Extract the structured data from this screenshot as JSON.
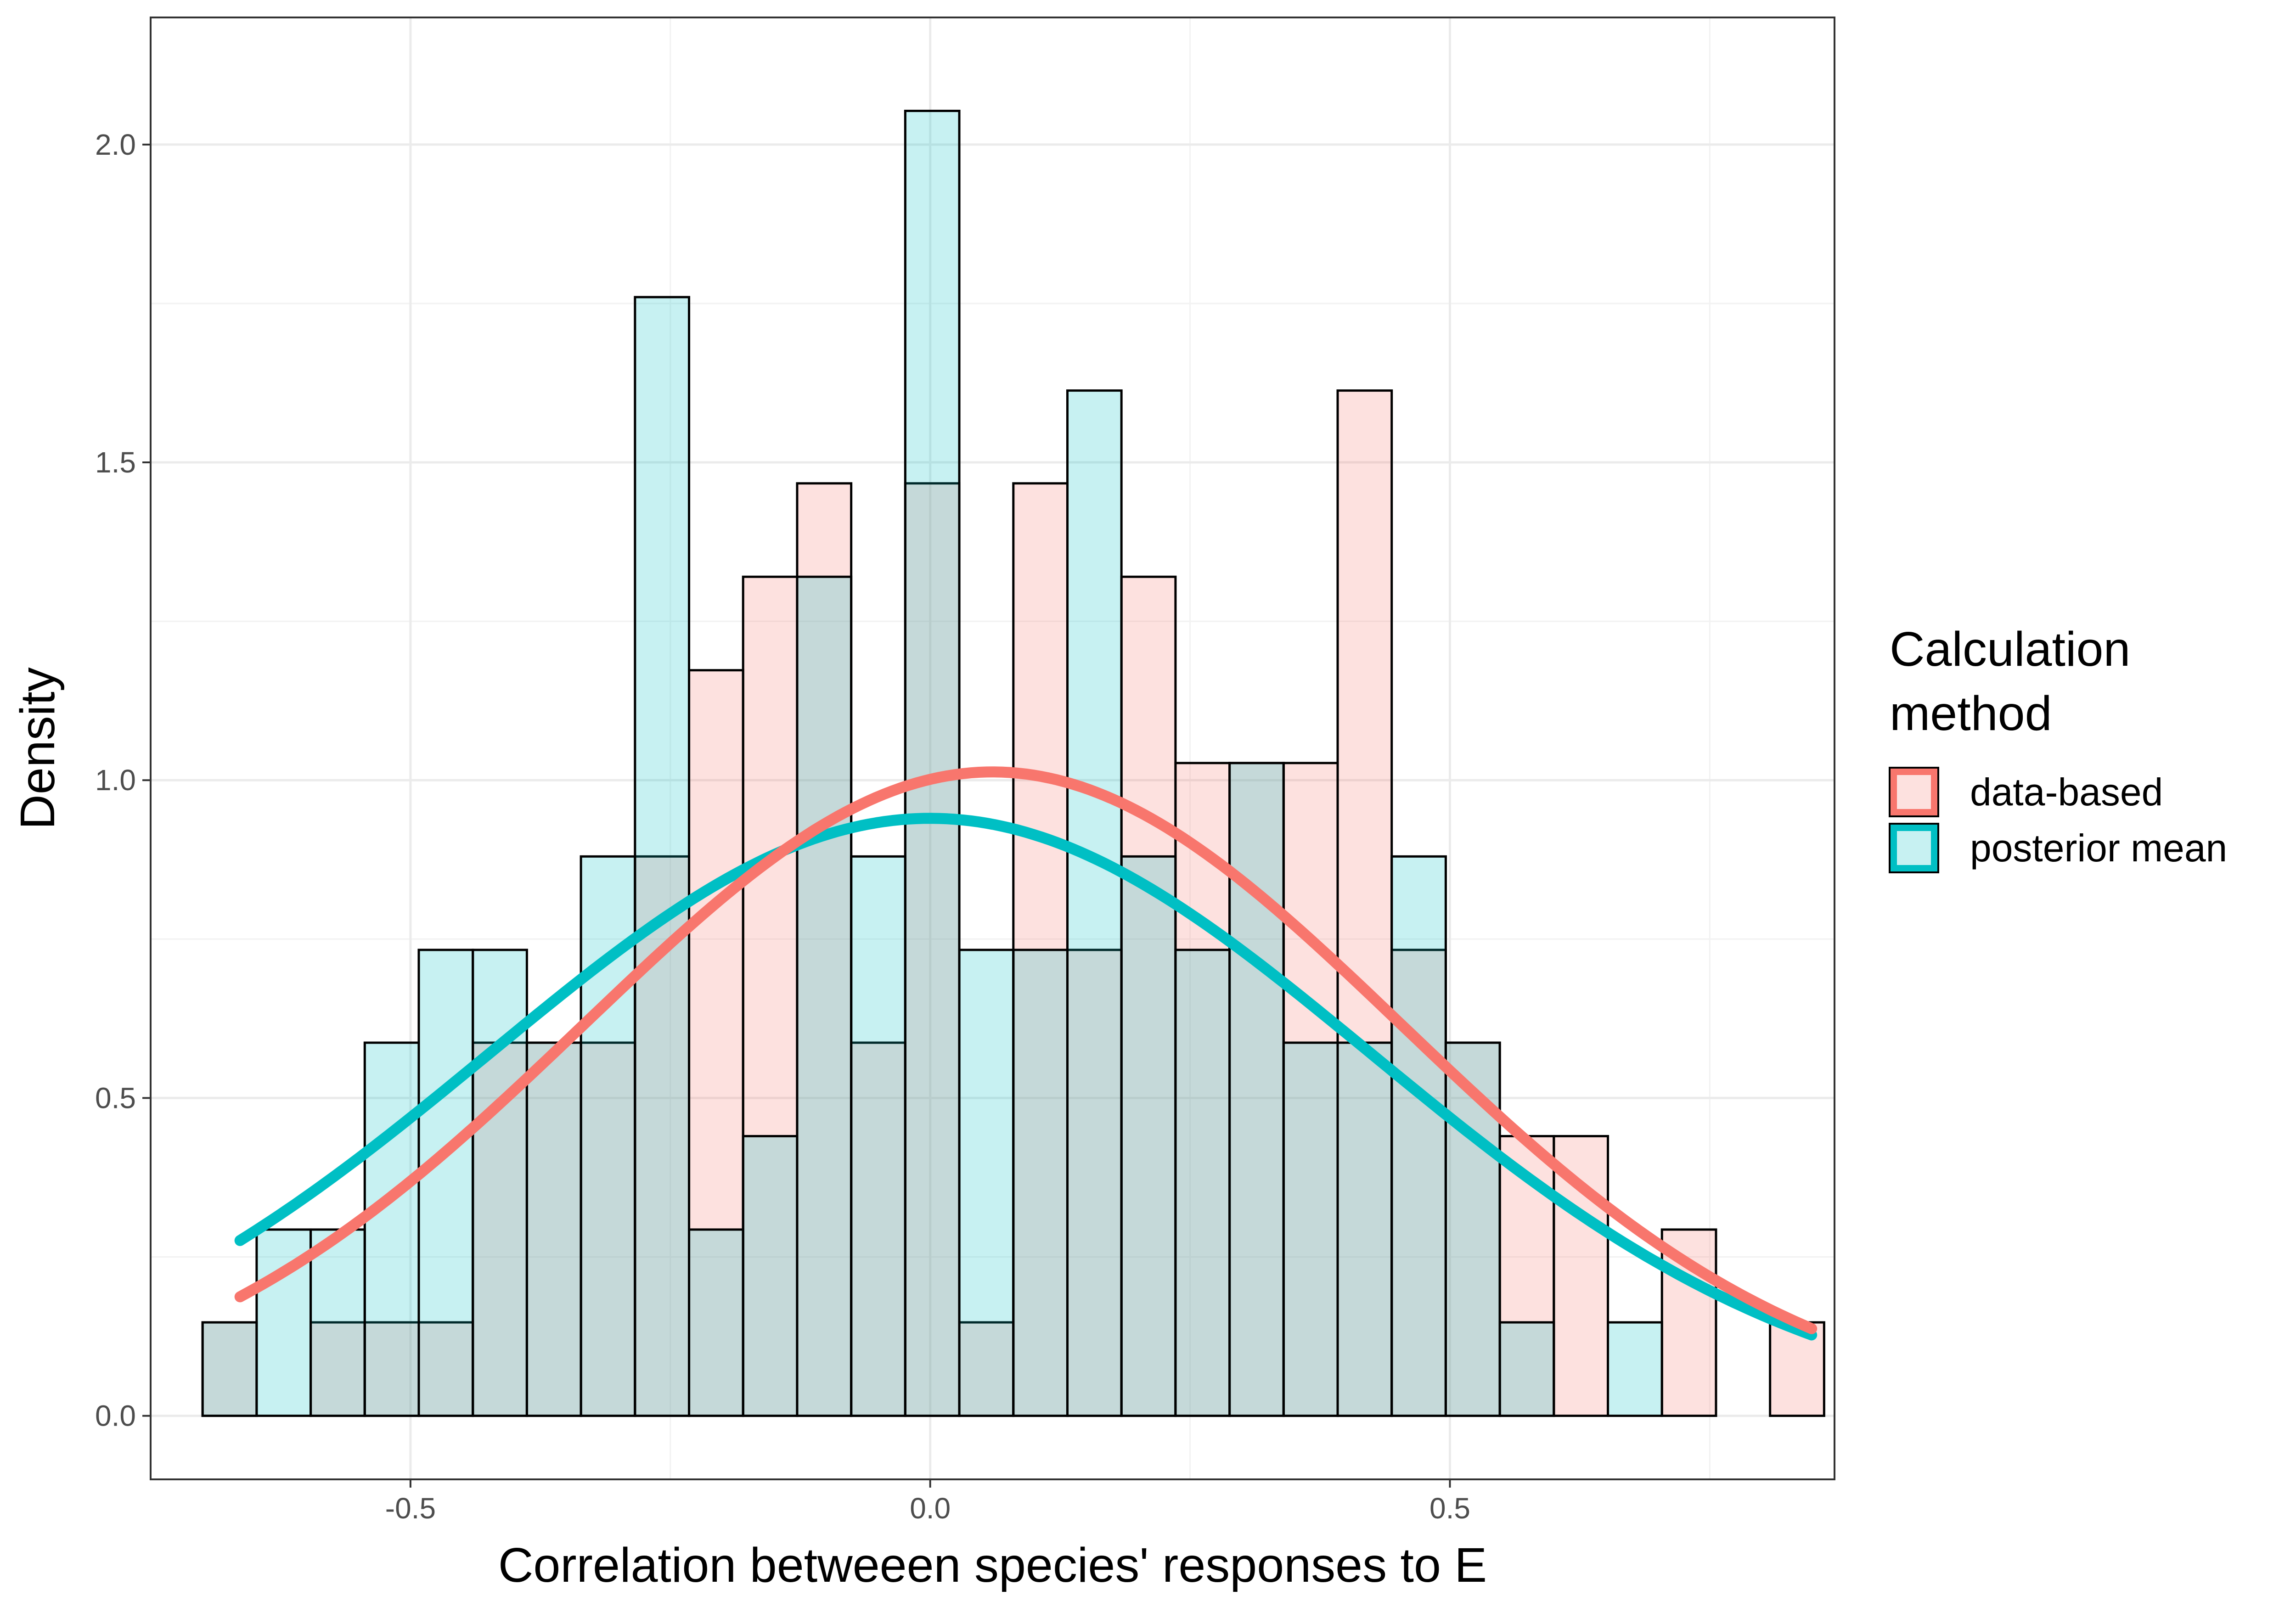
{
  "chart_data": {
    "type": "bar",
    "subtype": "overlapping histogram with fitted normal density curves",
    "title": "",
    "xlabel": "Correlation betweeen species' responses to E",
    "ylabel": "Density",
    "xlim": [
      -0.75,
      0.87
    ],
    "ylim": [
      -0.1,
      2.2
    ],
    "x_ticks": [
      {
        "value": -0.5,
        "label": "-0.5"
      },
      {
        "value": 0.0,
        "label": "0.0"
      },
      {
        "value": 0.5,
        "label": "0.5"
      }
    ],
    "y_ticks": [
      {
        "value": 0.0,
        "label": "0.0"
      },
      {
        "value": 0.5,
        "label": "0.5"
      },
      {
        "value": 1.0,
        "label": "1.0"
      },
      {
        "value": 1.5,
        "label": "1.5"
      },
      {
        "value": 2.0,
        "label": "2.0"
      }
    ],
    "grid": true,
    "bin_edges": [
      -0.7,
      -0.648,
      -0.596,
      -0.544,
      -0.492,
      -0.44,
      -0.388,
      -0.336,
      -0.284,
      -0.232,
      -0.18,
      -0.128,
      -0.076,
      -0.024,
      0.028,
      0.08,
      0.132,
      0.184,
      0.236,
      0.288,
      0.34,
      0.392,
      0.444,
      0.496,
      0.548,
      0.6,
      0.652,
      0.704,
      0.756,
      0.808,
      0.86
    ],
    "series": [
      {
        "name": "data-based",
        "color": "#F8766D",
        "fill": "#FDE0DE",
        "values": [
          0.147,
          0.0,
          0.147,
          0.147,
          0.147,
          0.587,
          0.587,
          0.587,
          0.88,
          1.173,
          1.32,
          1.467,
          0.587,
          1.467,
          0.147,
          1.467,
          0.733,
          1.32,
          1.027,
          1.027,
          1.027,
          1.613,
          0.733,
          0.587,
          0.44,
          0.44,
          0.0,
          0.293,
          0.0,
          0.147
        ],
        "density_curve": {
          "mean": 0.06,
          "sd": 0.394,
          "peak": 1.013
        }
      },
      {
        "name": "posterior mean",
        "color": "#00BFC4",
        "fill": "#CCF0F1",
        "values": [
          0.147,
          0.293,
          0.293,
          0.587,
          0.733,
          0.733,
          0.587,
          0.88,
          1.76,
          0.293,
          0.44,
          1.32,
          0.88,
          2.053,
          0.733,
          0.733,
          1.613,
          0.88,
          0.733,
          1.027,
          0.587,
          0.587,
          0.88,
          0.587,
          0.147,
          0.0,
          0.147,
          0.0,
          0.0,
          0.0
        ],
        "density_curve": {
          "mean": 0.0,
          "sd": 0.424,
          "peak": 0.94
        }
      }
    ],
    "curve_x_range": [
      -0.664,
      0.848
    ],
    "legend": {
      "title_lines": [
        "Calculation",
        "method"
      ],
      "position": "right",
      "entries": [
        "data-based",
        "posterior mean"
      ]
    }
  }
}
